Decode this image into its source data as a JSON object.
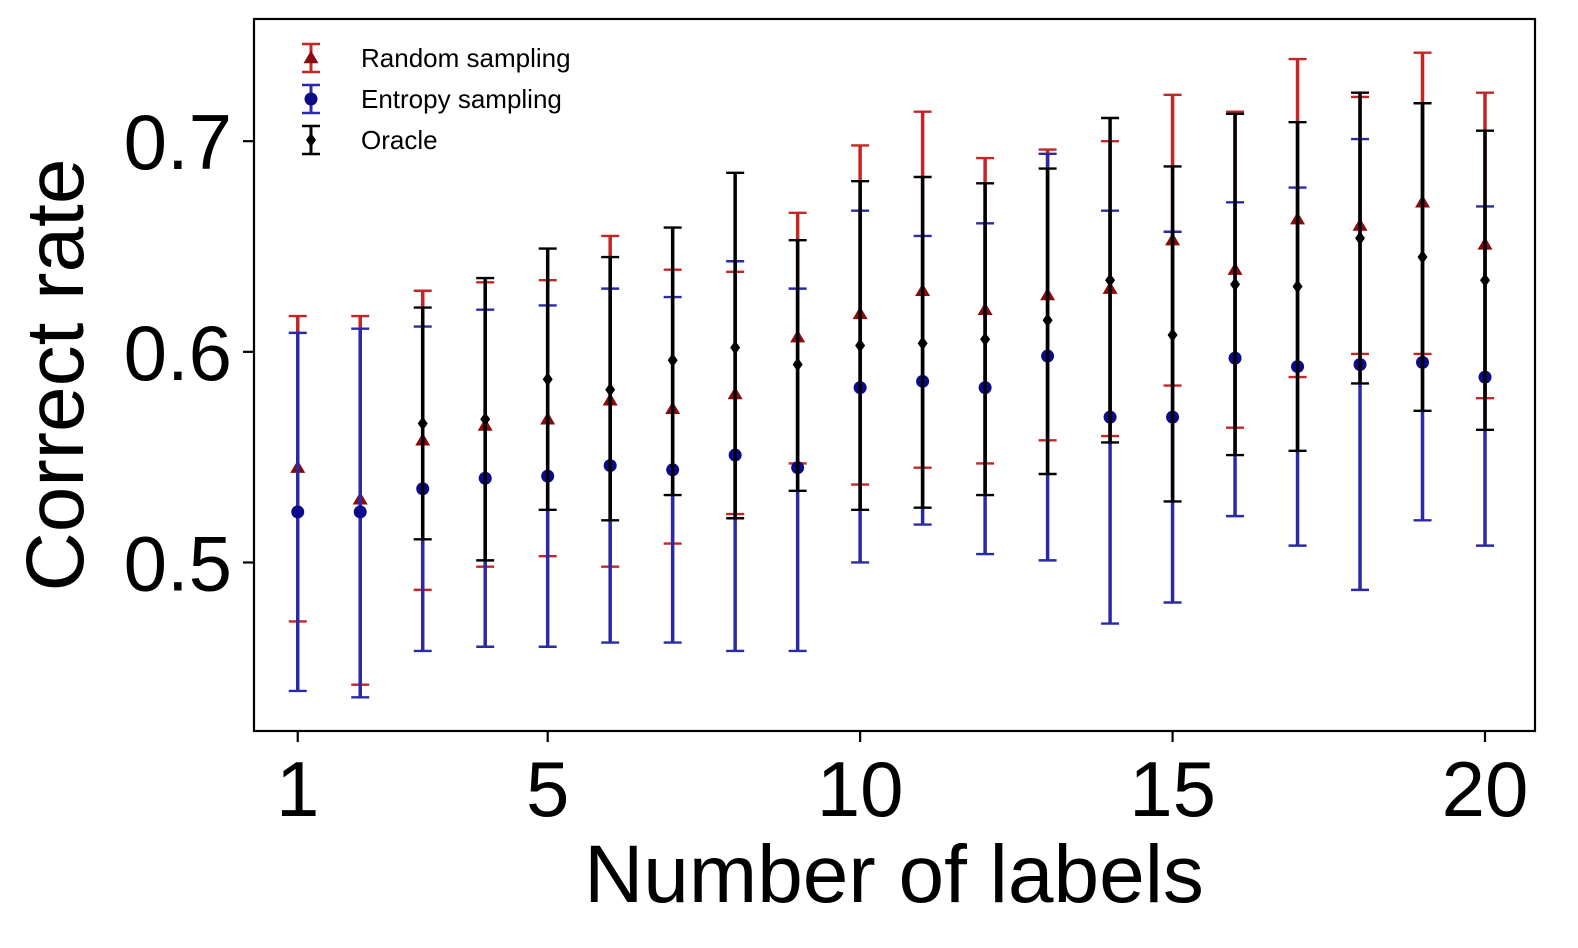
{
  "chart_data": {
    "type": "scatter",
    "title": "",
    "xlabel": "Number of labels",
    "ylabel": "Correct rate",
    "xlim": [
      0.3,
      20.8
    ],
    "ylim": [
      0.42,
      0.758
    ],
    "xticks": [
      1,
      5,
      10,
      15,
      20
    ],
    "xtick_labels": [
      "1",
      "5",
      "10",
      "15",
      "20"
    ],
    "yticks": [
      0.5,
      0.6,
      0.7
    ],
    "ytick_labels": [
      "0.5",
      "0.6",
      "0.7"
    ],
    "grid": false,
    "legend_position": "top-left",
    "series": [
      {
        "name": "Random sampling",
        "color": "#8b0a0a",
        "bar_color": "#c42525",
        "marker": "triangle",
        "x": [
          1,
          2,
          3,
          4,
          5,
          6,
          7,
          8,
          9,
          10,
          11,
          12,
          13,
          14,
          15,
          16,
          17,
          18,
          19,
          20
        ],
        "y": [
          0.545,
          0.53,
          0.558,
          0.565,
          0.568,
          0.577,
          0.573,
          0.58,
          0.607,
          0.618,
          0.629,
          0.62,
          0.627,
          0.63,
          0.653,
          0.639,
          0.663,
          0.66,
          0.671,
          0.651
        ],
        "lower": [
          0.472,
          0.442,
          0.487,
          0.498,
          0.503,
          0.498,
          0.509,
          0.523,
          0.547,
          0.537,
          0.545,
          0.547,
          0.558,
          0.56,
          0.584,
          0.564,
          0.588,
          0.599,
          0.599,
          0.578
        ],
        "upper": [
          0.617,
          0.617,
          0.629,
          0.633,
          0.634,
          0.655,
          0.639,
          0.638,
          0.666,
          0.698,
          0.714,
          0.692,
          0.696,
          0.7,
          0.722,
          0.714,
          0.739,
          0.721,
          0.742,
          0.723
        ]
      },
      {
        "name": "Entropy sampling",
        "color": "#0a0a8b",
        "bar_color": "#2a2aa6",
        "marker": "circle",
        "x": [
          1,
          2,
          3,
          4,
          5,
          6,
          7,
          8,
          9,
          10,
          11,
          12,
          13,
          14,
          15,
          16,
          17,
          18,
          19,
          20
        ],
        "y": [
          0.524,
          0.524,
          0.535,
          0.54,
          0.541,
          0.546,
          0.544,
          0.551,
          0.545,
          0.583,
          0.586,
          0.583,
          0.598,
          0.569,
          0.569,
          0.597,
          0.593,
          0.594,
          0.595,
          0.588
        ],
        "lower": [
          0.439,
          0.436,
          0.458,
          0.46,
          0.46,
          0.462,
          0.462,
          0.458,
          0.458,
          0.5,
          0.518,
          0.504,
          0.501,
          0.471,
          0.481,
          0.522,
          0.508,
          0.487,
          0.52,
          0.508
        ],
        "upper": [
          0.609,
          0.611,
          0.612,
          0.62,
          0.622,
          0.63,
          0.626,
          0.643,
          0.63,
          0.667,
          0.655,
          0.661,
          0.694,
          0.667,
          0.657,
          0.671,
          0.678,
          0.701,
          0.718,
          0.669
        ]
      },
      {
        "name": "Oracle",
        "color": "#000000",
        "bar_color": "#000000",
        "marker": "diamond",
        "x": [
          3,
          4,
          5,
          6,
          7,
          8,
          9,
          10,
          11,
          12,
          13,
          14,
          15,
          16,
          17,
          18,
          19,
          20
        ],
        "y": [
          0.566,
          0.568,
          0.587,
          0.582,
          0.596,
          0.602,
          0.594,
          0.603,
          0.604,
          0.606,
          0.615,
          0.634,
          0.608,
          0.632,
          0.631,
          0.654,
          0.645,
          0.634
        ],
        "lower": [
          0.511,
          0.501,
          0.525,
          0.52,
          0.532,
          0.521,
          0.534,
          0.525,
          0.526,
          0.532,
          0.542,
          0.557,
          0.529,
          0.551,
          0.553,
          0.585,
          0.572,
          0.563
        ],
        "upper": [
          0.621,
          0.635,
          0.649,
          0.645,
          0.659,
          0.685,
          0.653,
          0.681,
          0.683,
          0.68,
          0.687,
          0.711,
          0.688,
          0.713,
          0.709,
          0.723,
          0.718,
          0.705
        ]
      }
    ]
  }
}
